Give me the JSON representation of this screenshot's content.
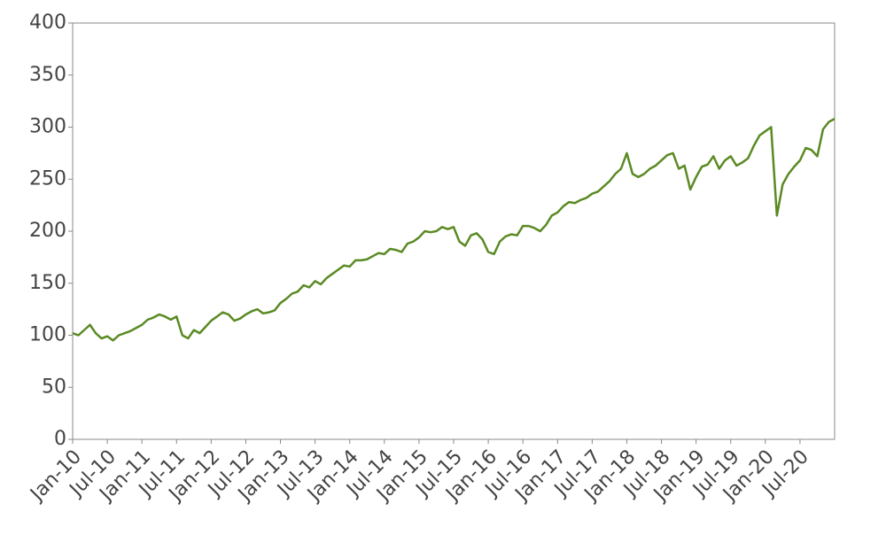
{
  "chart_data": {
    "type": "line",
    "categories": [
      "Jan-10",
      null,
      null,
      null,
      null,
      null,
      "Jul-10",
      null,
      null,
      null,
      null,
      null,
      "Jan-11",
      null,
      null,
      null,
      null,
      null,
      "Jul-11",
      null,
      null,
      null,
      null,
      null,
      "Jan-12",
      null,
      null,
      null,
      null,
      null,
      "Jul-12",
      null,
      null,
      null,
      null,
      null,
      "Jan-13",
      null,
      null,
      null,
      null,
      null,
      "Jul-13",
      null,
      null,
      null,
      null,
      null,
      "Jan-14",
      null,
      null,
      null,
      null,
      null,
      "Jul-14",
      null,
      null,
      null,
      null,
      null,
      "Jan-15",
      null,
      null,
      null,
      null,
      null,
      "Jul-15",
      null,
      null,
      null,
      null,
      null,
      "Jan-16",
      null,
      null,
      null,
      null,
      null,
      "Jul-16",
      null,
      null,
      null,
      null,
      null,
      "Jan-17",
      null,
      null,
      null,
      null,
      null,
      "Jul-17",
      null,
      null,
      null,
      null,
      null,
      "Jan-18",
      null,
      null,
      null,
      null,
      null,
      "Jul-18",
      null,
      null,
      null,
      null,
      null,
      "Jan-19",
      null,
      null,
      null,
      null,
      null,
      "Jul-19",
      null,
      null,
      null,
      null,
      null,
      "Jan-20",
      null,
      null,
      null,
      null,
      null,
      "Jul-20",
      null,
      null,
      null,
      null,
      null,
      null
    ],
    "values": [
      102,
      100,
      105,
      110,
      102,
      97,
      99,
      95,
      100,
      102,
      104,
      107,
      110,
      115,
      117,
      120,
      118,
      115,
      118,
      100,
      97,
      105,
      102,
      108,
      114,
      118,
      122,
      120,
      114,
      116,
      120,
      123,
      125,
      121,
      122,
      124,
      131,
      135,
      140,
      142,
      148,
      146,
      152,
      149,
      155,
      159,
      163,
      167,
      166,
      172,
      172,
      173,
      176,
      179,
      178,
      183,
      182,
      180,
      188,
      190,
      194,
      200,
      199,
      200,
      204,
      202,
      204,
      190,
      186,
      196,
      198,
      192,
      180,
      178,
      190,
      195,
      197,
      196,
      205,
      205,
      203,
      200,
      206,
      215,
      218,
      224,
      228,
      227,
      230,
      232,
      236,
      238,
      243,
      248,
      255,
      260,
      275,
      255,
      252,
      255,
      260,
      263,
      268,
      273,
      275,
      260,
      263,
      240,
      252,
      262,
      264,
      272,
      260,
      268,
      272,
      263,
      266,
      270,
      282,
      292,
      296,
      300,
      215,
      245,
      255,
      262,
      268,
      280,
      278,
      272,
      298,
      305,
      308
    ],
    "color": "#5a8a23",
    "ylim": [
      0,
      400
    ],
    "yticks": [
      0,
      50,
      100,
      150,
      200,
      250,
      300,
      350,
      400
    ]
  }
}
